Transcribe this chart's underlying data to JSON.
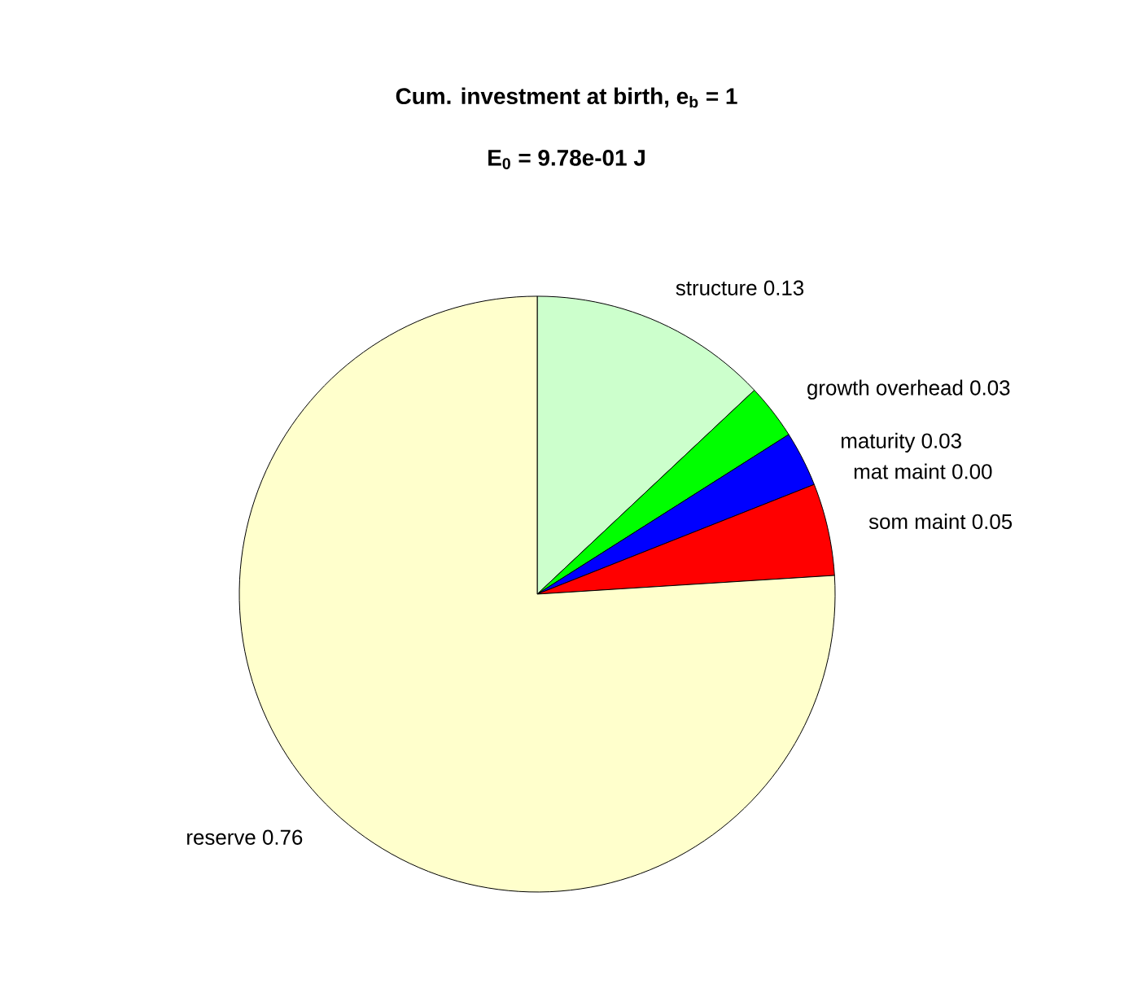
{
  "chart_data": {
    "type": "pie",
    "title": "Cum. investment at birth, e$_{b}$ = 1",
    "subtitle": "E$_{0}$ = 9.78e-01 J",
    "categories": [
      "structure",
      "growth overhead",
      "maturity",
      "mat maint",
      "som maint",
      "reserve"
    ],
    "values": [
      0.13,
      0.03,
      0.03,
      0.0,
      0.05,
      0.76
    ],
    "colors": [
      "#ccffcc",
      "#00ff00",
      "#0000ff",
      "#ff00ff",
      "#ff0000",
      "#ffffcc"
    ],
    "value_labels": [
      "0.13",
      "0.03",
      "0.03",
      "0.00",
      "0.05",
      "0.76"
    ]
  }
}
